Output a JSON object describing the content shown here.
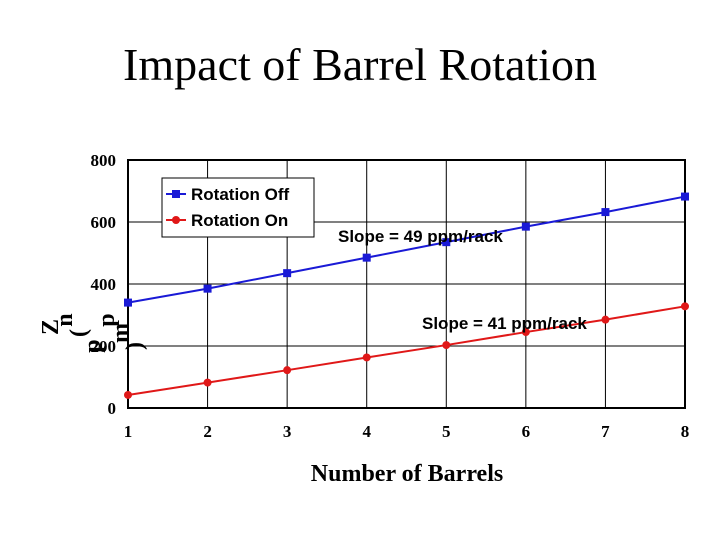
{
  "title": "Impact of Barrel Rotation",
  "chart_data": {
    "type": "line",
    "x": [
      1,
      2,
      3,
      4,
      5,
      6,
      7,
      8
    ],
    "xlim": [
      1,
      8
    ],
    "ylim": [
      0,
      800
    ],
    "xticks": [
      "1",
      "2",
      "3",
      "4",
      "5",
      "6",
      "7",
      "8"
    ],
    "yticks": [
      "0",
      "200",
      "400",
      "600",
      "800"
    ],
    "xlabel": "Number of Barrels",
    "ylabel": "Zn (ppm)",
    "ylabel_glyphs": [
      "Z",
      "n",
      "(",
      "p",
      "p",
      "m",
      ")"
    ],
    "grid": true,
    "legend_position": "top-left",
    "series": [
      {
        "name": "Rotation Off",
        "color": "#1a1ad6",
        "marker": "square",
        "values": [
          340,
          385,
          435,
          485,
          535,
          585,
          632,
          682
        ]
      },
      {
        "name": "Rotation On",
        "color": "#e01818",
        "marker": "circle",
        "values": [
          42,
          82,
          122,
          163,
          203,
          245,
          285,
          328
        ]
      }
    ],
    "annotations": [
      {
        "text": "Slope = 49 ppm/rack",
        "series": "Rotation Off"
      },
      {
        "text": "Slope = 41 ppm/rack",
        "series": "Rotation On"
      }
    ]
  }
}
